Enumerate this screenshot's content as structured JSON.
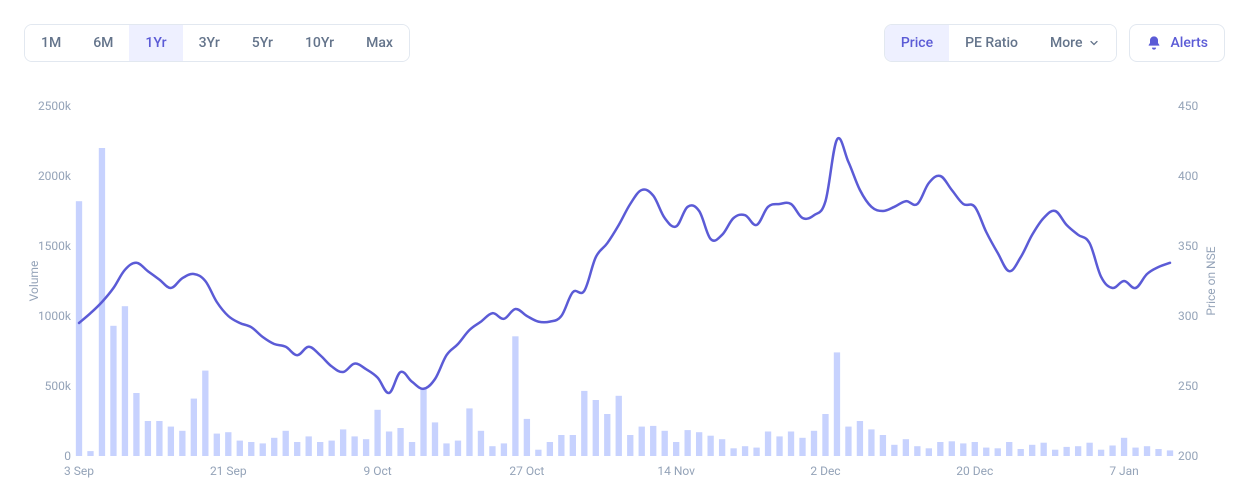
{
  "toolbar": {
    "ranges": [
      {
        "label": "1M",
        "active": false
      },
      {
        "label": "6M",
        "active": false
      },
      {
        "label": "1Yr",
        "active": true
      },
      {
        "label": "3Yr",
        "active": false
      },
      {
        "label": "5Yr",
        "active": false
      },
      {
        "label": "10Yr",
        "active": false
      },
      {
        "label": "Max",
        "active": false
      }
    ],
    "metrics": [
      {
        "label": "Price",
        "active": true
      },
      {
        "label": "PE Ratio",
        "active": false
      },
      {
        "label": "More",
        "active": false,
        "dropdown": true
      }
    ],
    "alerts_label": "Alerts"
  },
  "chart": {
    "type": "line+bar",
    "background_color": "#ffffff",
    "volume_axis": {
      "title": "Volume",
      "ticks": [
        "0",
        "500k",
        "1000k",
        "1500k",
        "2000k",
        "2500k"
      ],
      "min": 0,
      "max": 2500,
      "label_color": "#94a3b8",
      "label_fontsize": 12
    },
    "price_axis": {
      "title": "Price on NSE",
      "ticks": [
        "200",
        "250",
        "300",
        "350",
        "400",
        "450"
      ],
      "min": 200,
      "max": 450,
      "label_color": "#94a3b8",
      "label_fontsize": 12
    },
    "x_axis": {
      "tick_labels": [
        "3 Sep",
        "21 Sep",
        "9 Oct",
        "27 Oct",
        "14 Nov",
        "2 Dec",
        "20 Dec",
        "7 Jan"
      ],
      "tick_indices": [
        0,
        13,
        26,
        39,
        52,
        65,
        78,
        91
      ],
      "label_color": "#94a3b8",
      "label_fontsize": 12
    },
    "volume_bars": {
      "color": "#c7d2fe",
      "width_ratio": 0.55,
      "values_k": [
        1820,
        35,
        2200,
        930,
        1070,
        450,
        250,
        250,
        210,
        180,
        410,
        610,
        160,
        170,
        110,
        100,
        90,
        130,
        180,
        100,
        140,
        100,
        110,
        190,
        140,
        120,
        330,
        175,
        200,
        100,
        480,
        240,
        90,
        110,
        340,
        180,
        70,
        90,
        855,
        265,
        45,
        100,
        150,
        150,
        465,
        400,
        300,
        430,
        150,
        210,
        215,
        180,
        100,
        185,
        170,
        145,
        120,
        55,
        70,
        60,
        175,
        140,
        175,
        130,
        180,
        300,
        740,
        210,
        250,
        190,
        150,
        80,
        120,
        70,
        55,
        100,
        105,
        90,
        100,
        60,
        55,
        100,
        50,
        80,
        95,
        45,
        65,
        70,
        95,
        45,
        75,
        130,
        60,
        70,
        50,
        40
      ]
    },
    "price_line": {
      "color": "#5b5bd6",
      "width": 2.5,
      "values": [
        295,
        302,
        310,
        320,
        333,
        338,
        332,
        326,
        320,
        327,
        330,
        325,
        310,
        300,
        295,
        292,
        285,
        280,
        278,
        272,
        278,
        272,
        264,
        260,
        266,
        262,
        256,
        245,
        260,
        253,
        248,
        255,
        272,
        280,
        290,
        296,
        302,
        298,
        305,
        300,
        296,
        296,
        300,
        317,
        318,
        342,
        352,
        365,
        380,
        390,
        386,
        370,
        364,
        378,
        375,
        355,
        358,
        370,
        372,
        365,
        378,
        380,
        380,
        370,
        372,
        382,
        426,
        410,
        390,
        378,
        375,
        378,
        382,
        380,
        395,
        400,
        390,
        380,
        378,
        360,
        345,
        332,
        342,
        358,
        370,
        375,
        365,
        358,
        352,
        328,
        320,
        325,
        320,
        330,
        335,
        338
      ]
    }
  }
}
